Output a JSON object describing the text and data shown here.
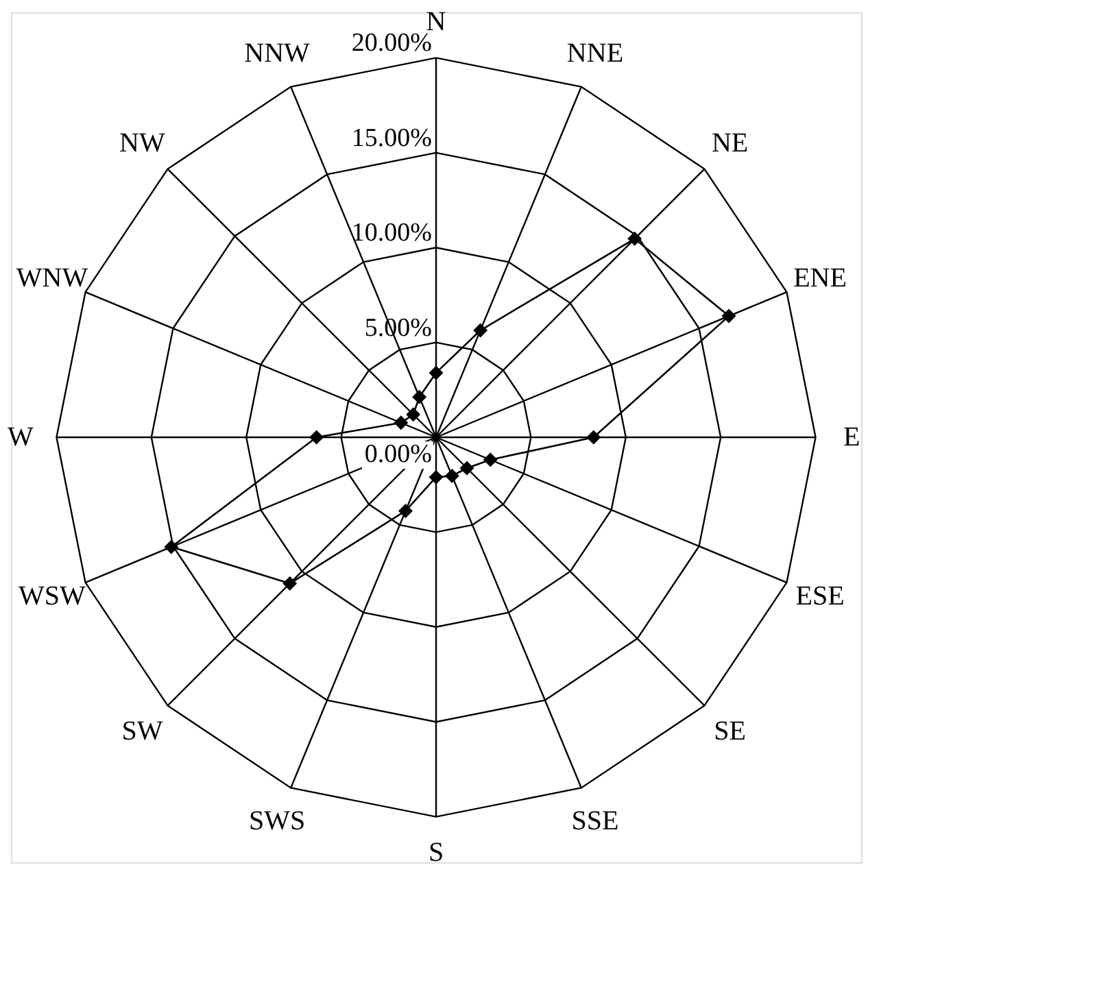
{
  "chart_data": {
    "type": "radar",
    "categories": [
      "N",
      "NNE",
      "NE",
      "ENE",
      "E",
      "ESE",
      "SE",
      "SSE",
      "S",
      "SWS",
      "SW",
      "WSW",
      "W",
      "WNW",
      "NW",
      "NNW"
    ],
    "series": [
      {
        "color": "#000000",
        "values": [
          3.4,
          6.1,
          14.8,
          16.7,
          8.3,
          3.1,
          2.3,
          2.2,
          2.1,
          4.2,
          10.9,
          15.1,
          6.3,
          2.0,
          1.7,
          2.3
        ]
      }
    ],
    "ylim": [
      0,
      20
    ],
    "yticks": [
      {
        "value": 0,
        "label": "0.00%"
      },
      {
        "value": 5,
        "label": "5.00%"
      },
      {
        "value": 10,
        "label": "10.00%"
      },
      {
        "value": 15,
        "label": "15.00%"
      },
      {
        "value": 20,
        "label": "20.00%"
      }
    ],
    "grid": true,
    "marker": "diamond",
    "line_style": "solid"
  }
}
